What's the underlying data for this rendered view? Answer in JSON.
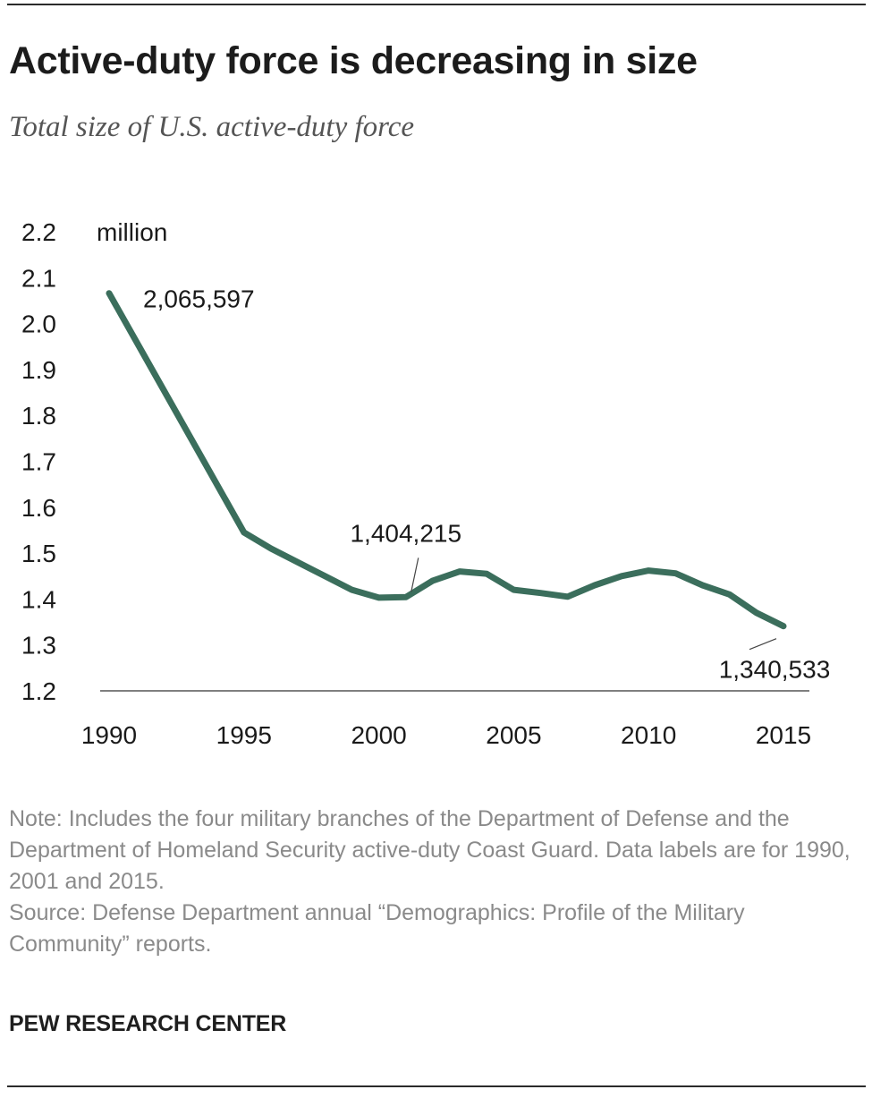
{
  "title": "Active-duty force is decreasing in size",
  "subtitle": "Total size of U.S. active-duty force",
  "colors": {
    "line": "#3b6e5c",
    "axis": "#555555",
    "text": "#1a1a1a",
    "note": "#8a8a8a"
  },
  "chart_data": {
    "type": "line",
    "title": "Active-duty force is decreasing in size",
    "subtitle": "Total size of U.S. active-duty force",
    "unit_label": "million",
    "x": [
      1990,
      1995,
      1996,
      1997,
      1998,
      1999,
      2000,
      2001,
      2002,
      2003,
      2004,
      2005,
      2006,
      2007,
      2008,
      2009,
      2010,
      2011,
      2012,
      2013,
      2014,
      2015
    ],
    "series": [
      {
        "values": [
          2.066,
          1.545,
          1.51,
          1.48,
          1.45,
          1.42,
          1.403,
          1.404,
          1.44,
          1.46,
          1.455,
          1.42,
          1.413,
          1.405,
          1.43,
          1.45,
          1.462,
          1.456,
          1.43,
          1.41,
          1.37,
          1.341
        ]
      }
    ],
    "xlim": [
      1990,
      2015
    ],
    "ylim": [
      1.2,
      2.2
    ],
    "x_ticks": [
      "1990",
      "1995",
      "2000",
      "2005",
      "2010",
      "2015"
    ],
    "y_ticks": [
      "1.2",
      "1.3",
      "1.4",
      "1.5",
      "1.6",
      "1.7",
      "1.8",
      "1.9",
      "2.0",
      "2.1",
      "2.2"
    ],
    "annotations": [
      {
        "x": 1990,
        "y": 2.066,
        "label": "2,065,597"
      },
      {
        "x": 2001,
        "y": 1.404,
        "label": "1,404,215"
      },
      {
        "x": 2015,
        "y": 1.341,
        "label": "1,340,533"
      }
    ],
    "grid": false
  },
  "notes": {
    "note": "Note: Includes the four military branches of the Department of Defense and the Department of Homeland Security active-duty Coast Guard. Data labels are for 1990, 2001 and 2015.",
    "source": "Source: Defense Department annual “Demographics: Profile of the Military Community” reports."
  },
  "credit": "PEW RESEARCH CENTER"
}
